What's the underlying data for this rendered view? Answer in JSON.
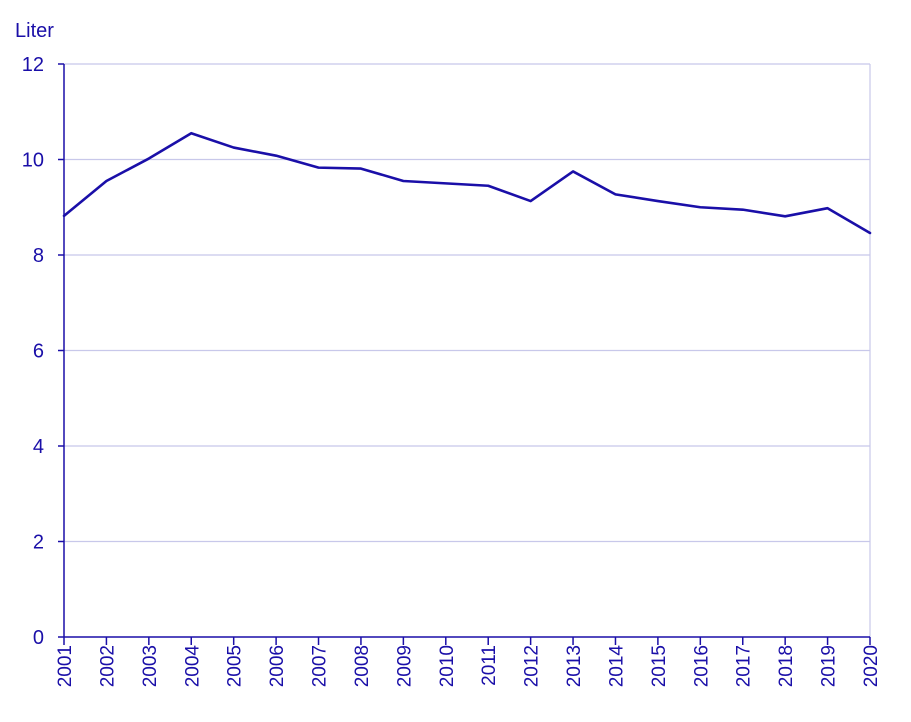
{
  "colors": {
    "axis_text": "#1a0fa8",
    "line": "#1a0fa8",
    "grid": "#c8c8ea",
    "axis": "#1a0fa8"
  },
  "chart_data": {
    "type": "line",
    "ylabel": "Liter",
    "xlabel": "",
    "title": "",
    "ylim": [
      0,
      12
    ],
    "yticks": [
      0,
      2,
      4,
      6,
      8,
      10,
      12
    ],
    "grid": true,
    "x": [
      "2001",
      "2002",
      "2003",
      "2004",
      "2005",
      "2006",
      "2007",
      "2008",
      "2009",
      "2010",
      "2011",
      "2012",
      "2013",
      "2014",
      "2015",
      "2016",
      "2017",
      "2018",
      "2019",
      "2020"
    ],
    "series": [
      {
        "values": [
          8.82,
          9.55,
          10.02,
          10.55,
          10.25,
          10.08,
          9.83,
          9.81,
          9.55,
          9.5,
          9.45,
          9.13,
          9.75,
          9.27,
          9.13,
          9.0,
          8.95,
          8.81,
          8.98,
          8.46
        ]
      }
    ]
  }
}
